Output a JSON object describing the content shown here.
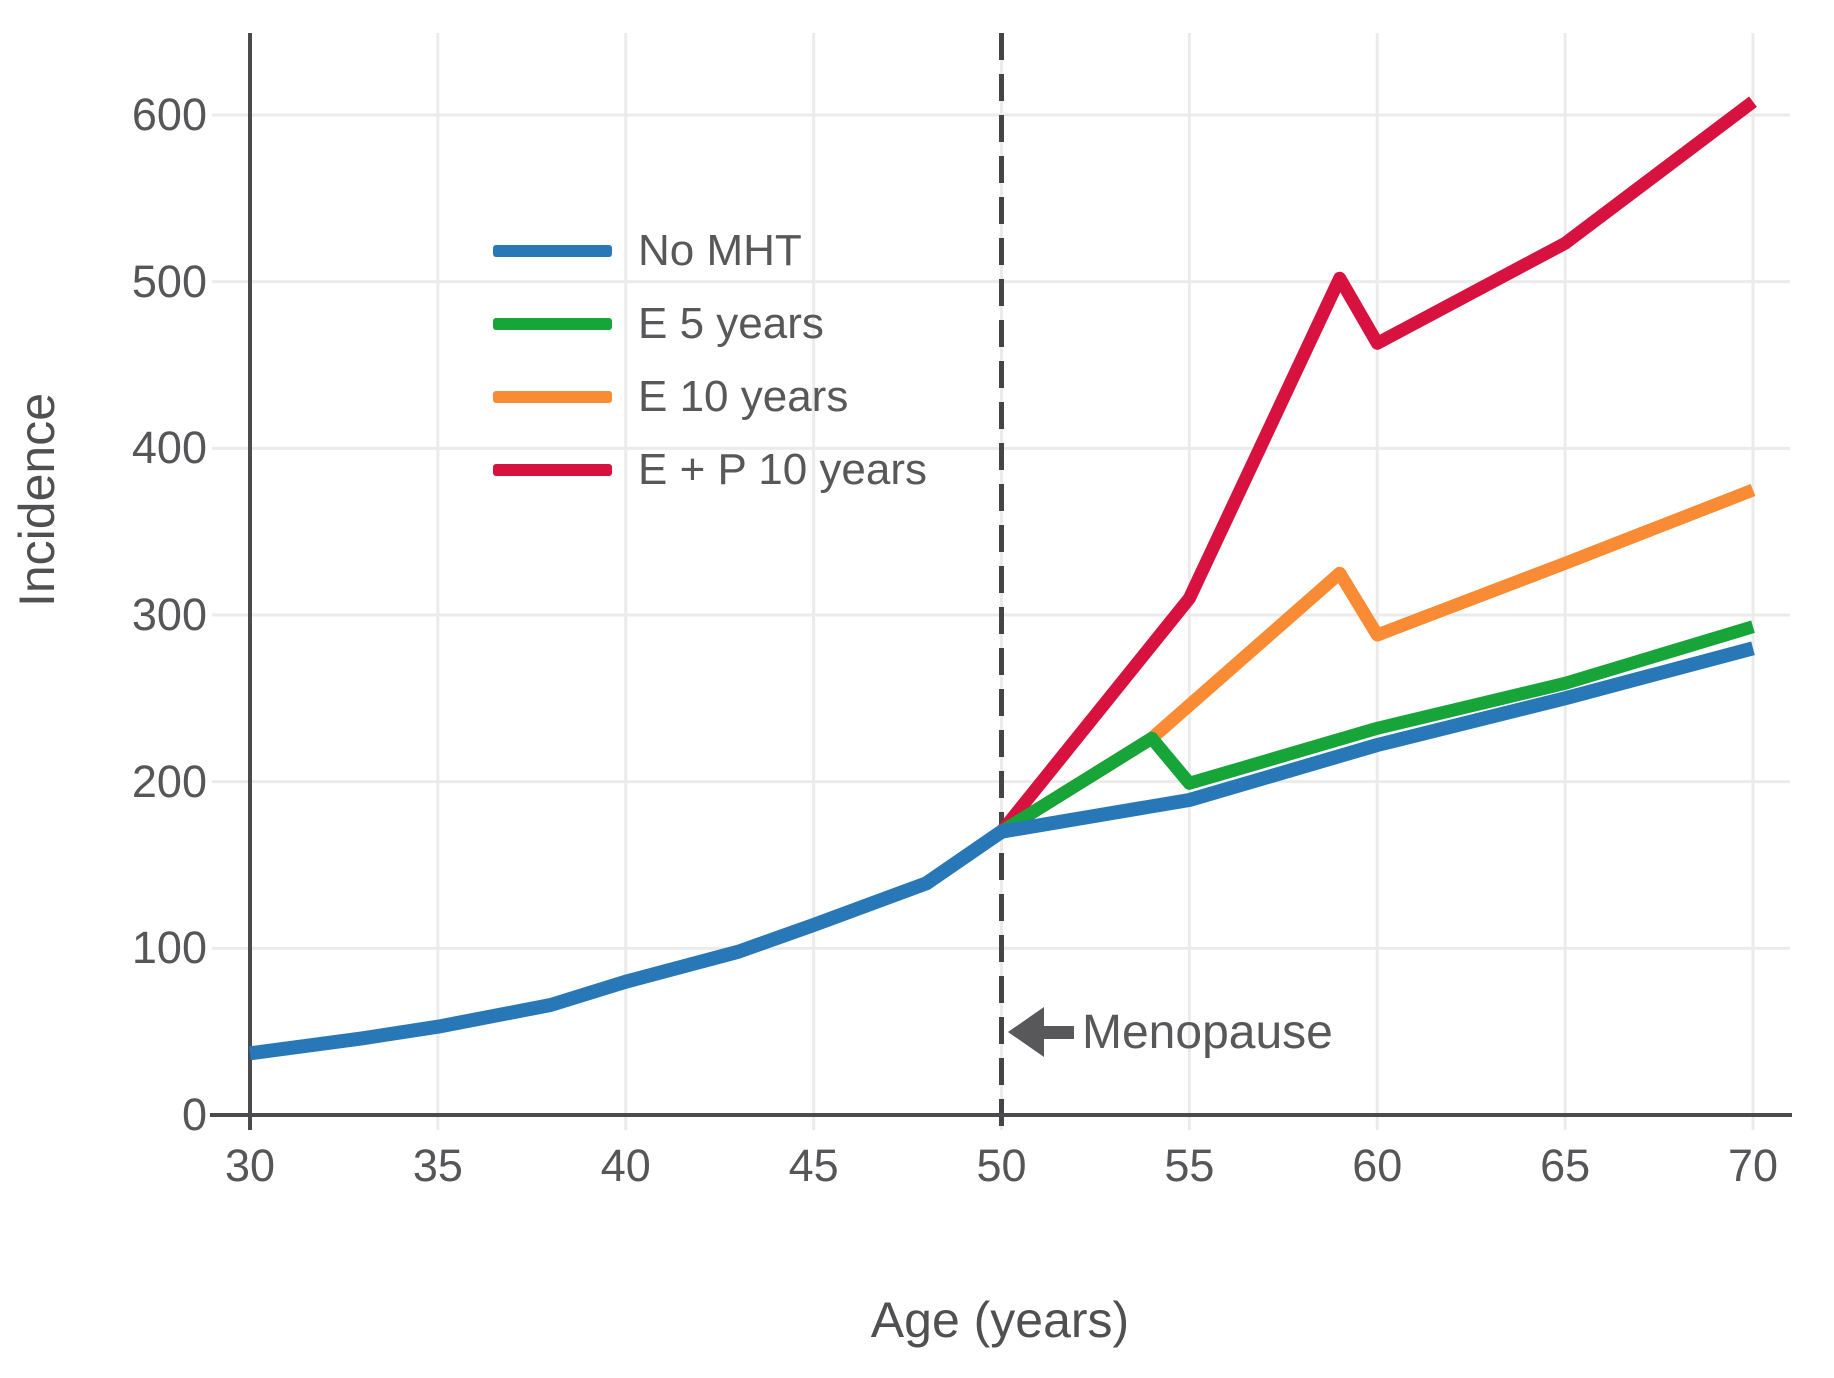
{
  "chart_data": {
    "type": "line",
    "title": "",
    "xlabel": "Age (years)",
    "ylabel": "Incidence",
    "x_ticks": [
      30,
      35,
      40,
      45,
      50,
      55,
      60,
      65,
      70
    ],
    "y_ticks": [
      0,
      100,
      200,
      300,
      400,
      500,
      600
    ],
    "xlim": [
      30,
      70
    ],
    "ylim": [
      0,
      650
    ],
    "grid": true,
    "legend_position": "upper-left-inside",
    "series": [
      {
        "name": "No MHT",
        "color": "#2878b8",
        "points": [
          [
            30,
            37
          ],
          [
            33,
            46
          ],
          [
            35,
            53
          ],
          [
            38,
            66
          ],
          [
            40,
            80
          ],
          [
            43,
            98
          ],
          [
            45,
            114
          ],
          [
            48,
            139
          ],
          [
            50,
            170
          ],
          [
            55,
            189
          ],
          [
            60,
            222
          ],
          [
            65,
            250
          ],
          [
            70,
            280
          ]
        ]
      },
      {
        "name": "E 5 years",
        "color": "#17a53a",
        "points": [
          [
            50,
            170
          ],
          [
            54,
            226
          ],
          [
            55,
            199
          ],
          [
            60,
            232
          ],
          [
            65,
            259
          ],
          [
            70,
            293
          ]
        ]
      },
      {
        "name": "E 10 years",
        "color": "#f98b34",
        "points": [
          [
            50,
            170
          ],
          [
            54,
            226
          ],
          [
            59,
            325
          ],
          [
            60,
            288
          ],
          [
            65,
            331
          ],
          [
            70,
            375
          ]
        ]
      },
      {
        "name": "E + P 10 years",
        "color": "#d8123f",
        "points": [
          [
            50,
            170
          ],
          [
            55,
            310
          ],
          [
            59,
            502
          ],
          [
            60,
            463
          ],
          [
            65,
            523
          ],
          [
            70,
            608
          ]
        ]
      }
    ],
    "vline": {
      "x": 50,
      "style": "dashed",
      "color": "#454547"
    },
    "annotation": {
      "text": "Menopause",
      "arrow": "left",
      "target_x": 50
    }
  },
  "colors": {
    "grid": "#ebebeb",
    "axis": "#4b4b4d",
    "tick_text": "#565659",
    "label_text": "#505052"
  }
}
